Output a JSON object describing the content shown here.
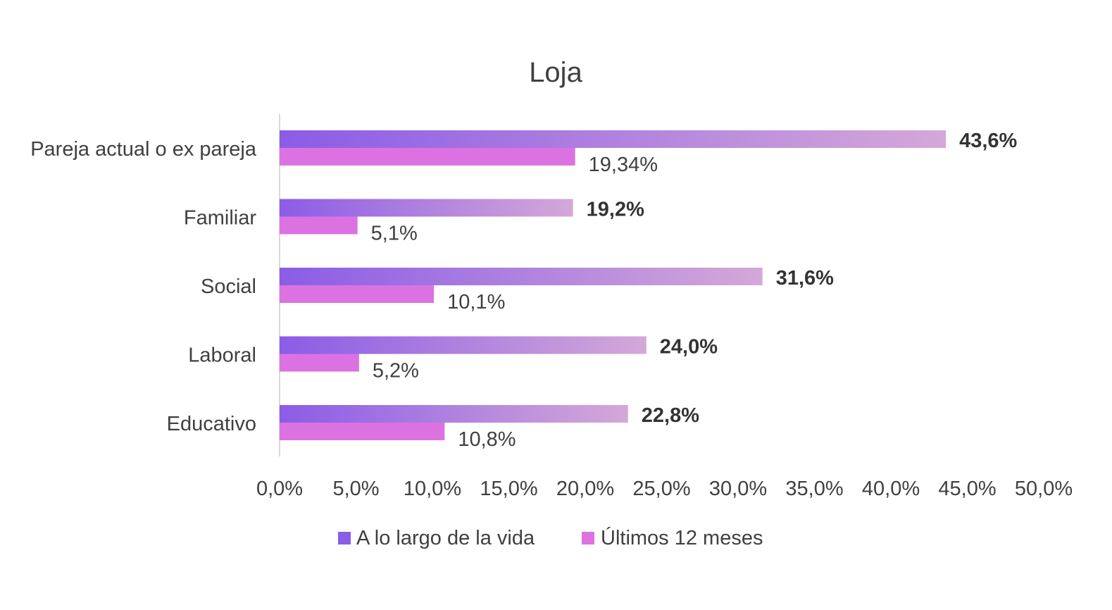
{
  "chart_data": {
    "type": "bar",
    "orientation": "horizontal",
    "title": "Loja",
    "categories": [
      "Pareja actual o ex pareja",
      "Familiar",
      "Social",
      "Laboral",
      "Educativo"
    ],
    "series": [
      {
        "name": "A lo largo de la vida",
        "color": "#8b5ce6",
        "gradient_end": "#d4a8d8",
        "values": [
          43.6,
          19.2,
          31.6,
          24.0,
          22.8
        ],
        "labels": [
          "43,6%",
          "19,2%",
          "31,6%",
          "24,0%",
          "22,8%"
        ],
        "label_weight": "bold"
      },
      {
        "name": "Últimos 12 meses",
        "color": "#dc72e2",
        "values": [
          19.34,
          5.1,
          10.1,
          5.2,
          10.8
        ],
        "labels": [
          "19,34%",
          "5,1%",
          "10,1%",
          "5,2%",
          "10,8%"
        ],
        "label_weight": "normal"
      }
    ],
    "xlim": [
      0,
      50
    ],
    "xticks": [
      0,
      5,
      10,
      15,
      20,
      25,
      30,
      35,
      40,
      45,
      50
    ],
    "xtick_labels": [
      "0,0%",
      "5,0%",
      "10,0%",
      "15,0%",
      "20,0%",
      "25,0%",
      "30,0%",
      "35,0%",
      "40,0%",
      "45,0%",
      "50,0%"
    ],
    "xlabel": "",
    "ylabel": "",
    "grid": false,
    "legend": "bottom-center",
    "legend_labels": [
      "A lo largo de la vida",
      "Últimos 12 meses"
    ]
  }
}
